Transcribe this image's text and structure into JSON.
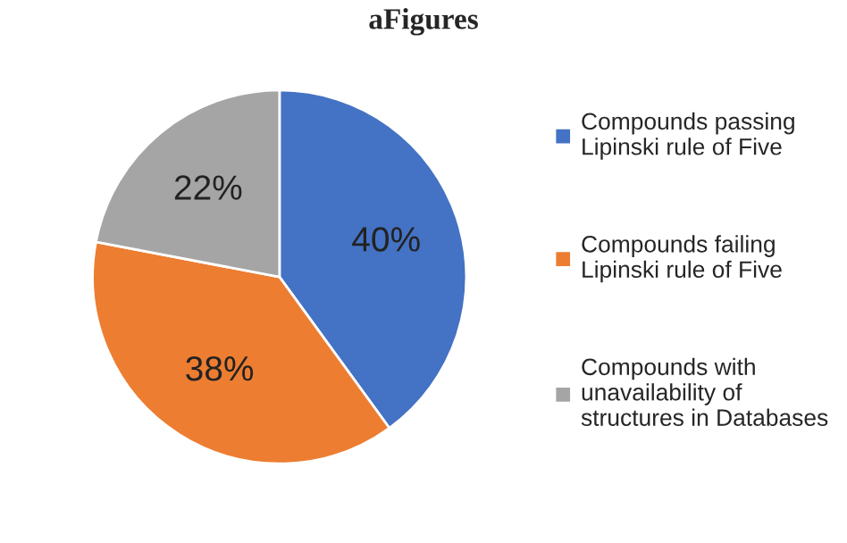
{
  "chart_data": {
    "type": "pie",
    "title": "aFigures",
    "categories": [
      "Compounds passing\nLipinski rule of Five",
      "Compounds failing\nLipinski rule of Five",
      "Compounds with\nunavailability of\nstructures in Databases"
    ],
    "values": [
      40,
      38,
      22
    ],
    "colors": [
      "#4472c4",
      "#ed7d31",
      "#a5a5a5"
    ],
    "value_labels": [
      "40%",
      "38%",
      "22%"
    ],
    "legend": "right"
  }
}
